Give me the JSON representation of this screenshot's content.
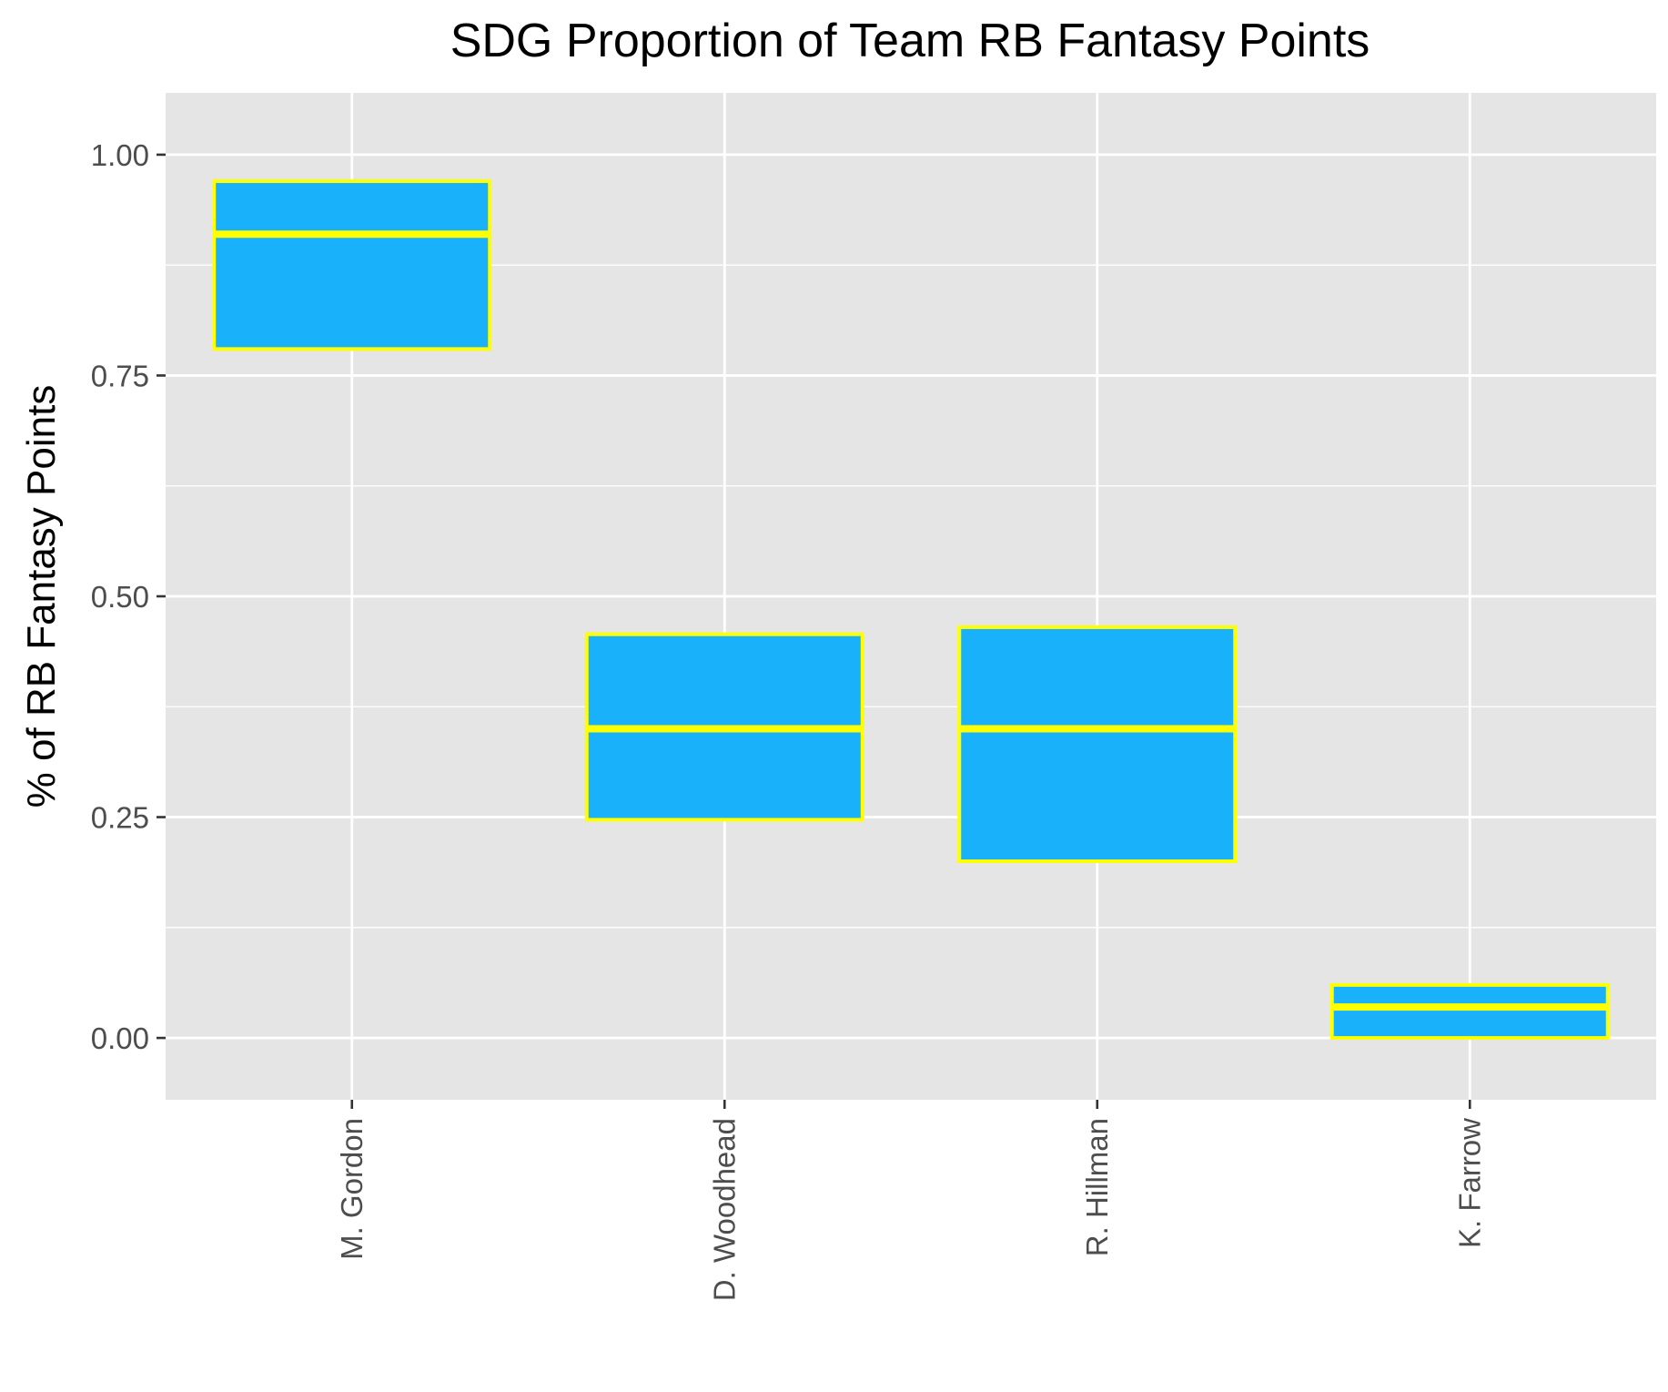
{
  "chart_data": {
    "type": "box",
    "title": "SDG Proportion of Team RB Fantasy Points",
    "xlabel": "",
    "ylabel": "% of RB Fantasy Points",
    "ylim": [
      -0.07,
      1.07
    ],
    "y_ticks": [
      0,
      0.25,
      0.5,
      0.75,
      1.0
    ],
    "y_tick_labels": [
      "0.00",
      "0.25",
      "0.50",
      "0.75",
      "1.00"
    ],
    "categories": [
      "M. Gordon",
      "D. Woodhead",
      "R. Hillman",
      "K. Farrow"
    ],
    "boxes": [
      {
        "category": "M. Gordon",
        "lower": 0.78,
        "median": 0.91,
        "upper": 0.97
      },
      {
        "category": "D. Woodhead",
        "lower": 0.247,
        "median": 0.35,
        "upper": 0.457
      },
      {
        "category": "R. Hillman",
        "lower": 0.2,
        "median": 0.35,
        "upper": 0.465
      },
      {
        "category": "K. Farrow",
        "lower": 0.0,
        "median": 0.035,
        "upper": 0.06
      }
    ],
    "grid": true,
    "legend": "none",
    "colors": {
      "box_fill": "#19b1fa",
      "box_outline": "#ffff00",
      "panel_background": "#e5e5e5",
      "grid_line": "#ffffff",
      "tick_label": "#4d4d4d",
      "tick_mark": "#333333"
    }
  }
}
